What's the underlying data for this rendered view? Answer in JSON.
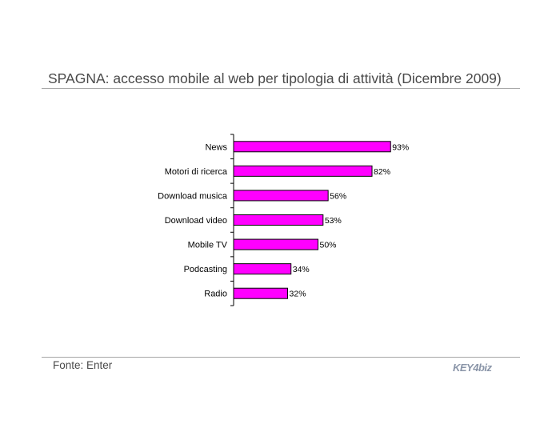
{
  "page": {
    "title": "SPAGNA: accesso mobile al web per tipologia di attività (Dicembre 2009)",
    "source": "Fonte: Enter",
    "logo": "KEY4biz"
  },
  "chart_data": {
    "type": "bar",
    "orientation": "horizontal",
    "categories": [
      "News",
      "Motori di ricerca",
      "Download musica",
      "Download video",
      "Mobile TV",
      "Podcasting",
      "Radio"
    ],
    "values": [
      93,
      82,
      56,
      53,
      50,
      34,
      32
    ],
    "value_labels": [
      "93%",
      "82%",
      "56%",
      "53%",
      "50%",
      "34%",
      "32%"
    ],
    "unit": "%",
    "xlim": [
      0,
      100
    ],
    "bar_color": "#ff00ff",
    "bar_border_color": "#000000",
    "grid": false,
    "legend": "none"
  }
}
